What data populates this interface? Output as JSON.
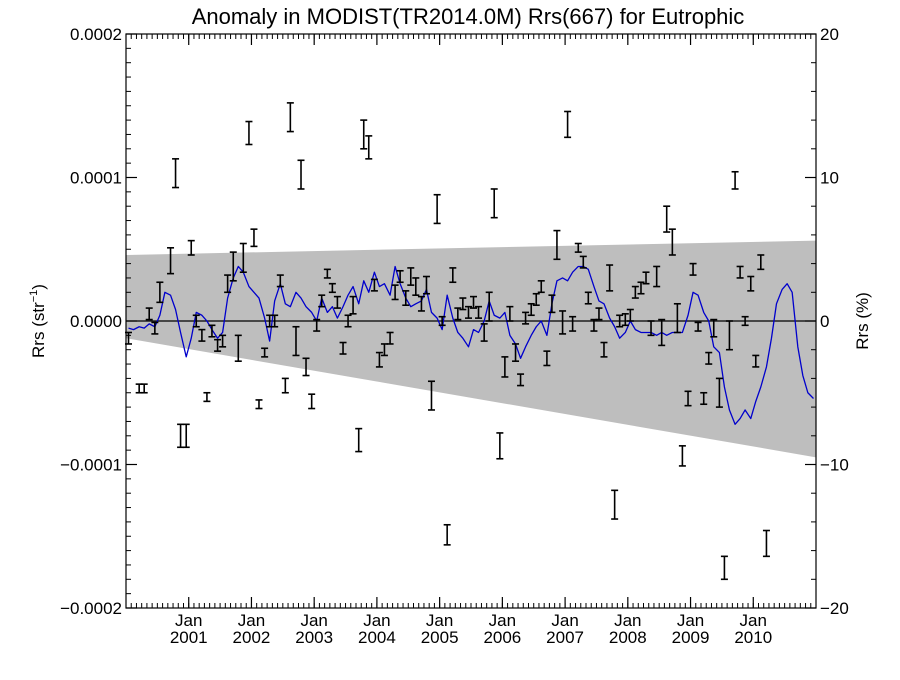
{
  "chart_data": {
    "type": "line",
    "title": "Anomaly in MODIST(TR2014.0M) Rrs(667) for Eutrophic",
    "ylabel_left_main": "Rrs (str",
    "ylabel_left_sup": "−1",
    "ylabel_left_close": ")",
    "ylabel_right": "Rrs (%)",
    "xlabel": "",
    "x_unit": "year (decimal)",
    "xlim": [
      2000.0,
      2011.0
    ],
    "ylim_left": [
      -0.0002,
      0.0002
    ],
    "ylim_right": [
      -20,
      20
    ],
    "left_ticks": [
      {
        "value": 0.0002,
        "label": "0.0002"
      },
      {
        "value": 0.0001,
        "label": "0.0001"
      },
      {
        "value": 0.0,
        "label": "0.0000"
      },
      {
        "value": -0.0001,
        "label": "−0.0001"
      },
      {
        "value": -0.0002,
        "label": "−0.0002"
      }
    ],
    "right_ticks": [
      {
        "value": 20,
        "label": "20"
      },
      {
        "value": 10,
        "label": "10"
      },
      {
        "value": 0,
        "label": "0"
      },
      {
        "value": -10,
        "label": "−10"
      },
      {
        "value": -20,
        "label": "−20"
      }
    ],
    "x_ticks": [
      {
        "value": 2001.0,
        "month": "Jan",
        "year": "2001"
      },
      {
        "value": 2002.0,
        "month": "Jan",
        "year": "2002"
      },
      {
        "value": 2003.0,
        "month": "Jan",
        "year": "2003"
      },
      {
        "value": 2004.0,
        "month": "Jan",
        "year": "2004"
      },
      {
        "value": 2005.0,
        "month": "Jan",
        "year": "2005"
      },
      {
        "value": 2006.0,
        "month": "Jan",
        "year": "2006"
      },
      {
        "value": 2007.0,
        "month": "Jan",
        "year": "2007"
      },
      {
        "value": 2008.0,
        "month": "Jan",
        "year": "2008"
      },
      {
        "value": 2009.0,
        "month": "Jan",
        "year": "2009"
      },
      {
        "value": 2010.0,
        "month": "Jan",
        "year": "2010"
      }
    ],
    "uncertainty_band": {
      "x": [
        2000.0,
        2011.0
      ],
      "upper": [
        4.6e-05,
        5.6e-05
      ],
      "lower": [
        -1.2e-05,
        -9.5e-05
      ],
      "color": "#bebebe"
    },
    "zero_line": 0.0,
    "series": [
      {
        "style": "line",
        "color": "#0000cc",
        "x": [
          2000.04,
          2000.12,
          2000.21,
          2000.29,
          2000.37,
          2000.46,
          2000.54,
          2000.62,
          2000.71,
          2000.79,
          2000.87,
          2000.96,
          2001.04,
          2001.12,
          2001.21,
          2001.29,
          2001.37,
          2001.46,
          2001.54,
          2001.62,
          2001.71,
          2001.79,
          2001.87,
          2001.96,
          2002.04,
          2002.12,
          2002.21,
          2002.29,
          2002.37,
          2002.46,
          2002.54,
          2002.62,
          2002.71,
          2002.79,
          2002.87,
          2002.96,
          2003.04,
          2003.12,
          2003.21,
          2003.29,
          2003.37,
          2003.46,
          2003.54,
          2003.62,
          2003.71,
          2003.79,
          2003.87,
          2003.96,
          2004.04,
          2004.12,
          2004.21,
          2004.29,
          2004.37,
          2004.46,
          2004.54,
          2004.62,
          2004.71,
          2004.79,
          2004.87,
          2004.96,
          2005.04,
          2005.12,
          2005.21,
          2005.29,
          2005.37,
          2005.46,
          2005.54,
          2005.62,
          2005.71,
          2005.79,
          2005.87,
          2005.96,
          2006.04,
          2006.12,
          2006.21,
          2006.29,
          2006.37,
          2006.46,
          2006.54,
          2006.62,
          2006.71,
          2006.79,
          2006.87,
          2006.96,
          2007.04,
          2007.12,
          2007.21,
          2007.29,
          2007.37,
          2007.46,
          2007.54,
          2007.62,
          2007.71,
          2007.79,
          2007.87,
          2007.96,
          2008.04,
          2008.12,
          2008.21,
          2008.29,
          2008.37,
          2008.46,
          2008.54,
          2008.62,
          2008.71,
          2008.79,
          2008.87,
          2008.96,
          2009.04,
          2009.12,
          2009.21,
          2009.29,
          2009.37,
          2009.46,
          2009.54,
          2009.62,
          2009.71,
          2009.79,
          2009.87,
          2009.96,
          2010.04,
          2010.12,
          2010.21,
          2010.29,
          2010.37,
          2010.46,
          2010.54,
          2010.62,
          2010.71,
          2010.79,
          2010.87,
          2010.96
        ],
        "y": [
          -5e-06,
          -6e-06,
          -4e-06,
          -5e-06,
          -2e-06,
          -4e-06,
          4e-06,
          2e-05,
          1.8e-05,
          8e-06,
          -8e-06,
          -2.5e-05,
          -1.2e-05,
          6e-06,
          4e-06,
          0.0,
          -6e-06,
          -1.2e-05,
          -8e-06,
          1.6e-05,
          3e-05,
          3.8e-05,
          3.4e-05,
          2.4e-05,
          2e-05,
          1.6e-05,
          2e-06,
          -1.4e-05,
          1.4e-05,
          2.6e-05,
          1.2e-05,
          1e-05,
          2e-05,
          1.6e-05,
          1e-05,
          6e-06,
          0.0,
          1.6e-05,
          6e-06,
          1e-05,
          2e-06,
          1e-05,
          1.8e-05,
          2.4e-05,
          1.2e-05,
          2.8e-05,
          2e-05,
          3.4e-05,
          2.4e-05,
          2.6e-05,
          1.8e-05,
          3.8e-05,
          2.6e-05,
          1.6e-05,
          1e-05,
          1.2e-05,
          1.4e-05,
          2.2e-05,
          6e-06,
          2e-06,
          -6e-06,
          1.8e-05,
          2e-06,
          -8e-06,
          -1.2e-05,
          -1.8e-05,
          -6e-06,
          -8e-06,
          0.0,
          1.4e-05,
          4e-06,
          2e-06,
          6e-06,
          -1e-05,
          -1.6e-05,
          -2.6e-05,
          -1.8e-05,
          -1e-05,
          -4e-06,
          0.0,
          -1e-05,
          1.2e-05,
          2.8e-05,
          3e-05,
          2.8e-05,
          3.4e-05,
          3.8e-05,
          3.8e-05,
          3.6e-05,
          2.4e-05,
          1.4e-05,
          1.2e-05,
          2e-06,
          -4e-06,
          -1.2e-05,
          -8e-06,
          0.0,
          -6e-06,
          -8e-06,
          -8e-06,
          -8e-06,
          -1e-05,
          -8e-06,
          -1e-05,
          -8e-06,
          -8e-06,
          -8e-06,
          4e-06,
          2e-05,
          1.8e-05,
          6e-06,
          0.0,
          -1.8e-05,
          -2.2e-05,
          -4.6e-05,
          -6.2e-05,
          -7.2e-05,
          -6.8e-05,
          -6.2e-05,
          -6.8e-05,
          -5.6e-05,
          -4.6e-05,
          -3.2e-05,
          -1.2e-05,
          1.2e-05,
          2.2e-05,
          2.6e-05,
          2e-05,
          -1.8e-05,
          -3.8e-05,
          -5e-05,
          -5.4e-05
        ]
      },
      {
        "style": "errorbar",
        "color": "#000000",
        "points": [
          {
            "x": 2000.04,
            "y": -1.2e-05,
            "err": 4e-06
          },
          {
            "x": 2000.21,
            "y": -4.7e-05,
            "err": 3e-06
          },
          {
            "x": 2000.29,
            "y": -4.7e-05,
            "err": 3e-06
          },
          {
            "x": 2000.37,
            "y": 5e-06,
            "err": 4e-06
          },
          {
            "x": 2000.46,
            "y": -5e-06,
            "err": 4e-06
          },
          {
            "x": 2000.54,
            "y": 2e-05,
            "err": 7e-06
          },
          {
            "x": 2000.71,
            "y": 4.2e-05,
            "err": 9e-06
          },
          {
            "x": 2000.79,
            "y": 0.000103,
            "err": 1e-05
          },
          {
            "x": 2000.87,
            "y": -8e-05,
            "err": 8e-06
          },
          {
            "x": 2000.96,
            "y": -8e-05,
            "err": 8e-06
          },
          {
            "x": 2001.04,
            "y": 5.1e-05,
            "err": 5e-06
          },
          {
            "x": 2001.12,
            "y": 0.0,
            "err": 4e-06
          },
          {
            "x": 2001.21,
            "y": -1e-05,
            "err": 4e-06
          },
          {
            "x": 2001.29,
            "y": -5.3e-05,
            "err": 3e-06
          },
          {
            "x": 2001.37,
            "y": -7e-06,
            "err": 4e-06
          },
          {
            "x": 2001.46,
            "y": -1.7e-05,
            "err": 4e-06
          },
          {
            "x": 2001.54,
            "y": -1.4e-05,
            "err": 4e-06
          },
          {
            "x": 2001.62,
            "y": 2.6e-05,
            "err": 6e-06
          },
          {
            "x": 2001.71,
            "y": 3.8e-05,
            "err": 1e-05
          },
          {
            "x": 2001.79,
            "y": -1.9e-05,
            "err": 9e-06
          },
          {
            "x": 2001.87,
            "y": 4.4e-05,
            "err": 1e-05
          },
          {
            "x": 2001.96,
            "y": 0.000131,
            "err": 8e-06
          },
          {
            "x": 2002.04,
            "y": 5.8e-05,
            "err": 6e-06
          },
          {
            "x": 2002.12,
            "y": -5.8e-05,
            "err": 3e-06
          },
          {
            "x": 2002.21,
            "y": -2.2e-05,
            "err": 3e-06
          },
          {
            "x": 2002.29,
            "y": 0.0,
            "err": 4e-06
          },
          {
            "x": 2002.37,
            "y": 0.0,
            "err": 4e-06
          },
          {
            "x": 2002.46,
            "y": 2.8e-05,
            "err": 4e-06
          },
          {
            "x": 2002.54,
            "y": -4.5e-05,
            "err": 5e-06
          },
          {
            "x": 2002.62,
            "y": 0.000142,
            "err": 1e-05
          },
          {
            "x": 2002.71,
            "y": -1.4e-05,
            "err": 1e-05
          },
          {
            "x": 2002.79,
            "y": 0.000102,
            "err": 1e-05
          },
          {
            "x": 2002.87,
            "y": -3.2e-05,
            "err": 6e-06
          },
          {
            "x": 2002.96,
            "y": -5.6e-05,
            "err": 5e-06
          },
          {
            "x": 2003.04,
            "y": -3e-06,
            "err": 4e-06
          },
          {
            "x": 2003.12,
            "y": 1.4e-05,
            "err": 4e-06
          },
          {
            "x": 2003.21,
            "y": 3.3e-05,
            "err": 3e-06
          },
          {
            "x": 2003.29,
            "y": 2.3e-05,
            "err": 3e-06
          },
          {
            "x": 2003.37,
            "y": 1.3e-05,
            "err": 4e-06
          },
          {
            "x": 2003.46,
            "y": -1.9e-05,
            "err": 4e-06
          },
          {
            "x": 2003.54,
            "y": 0.0,
            "err": 4e-06
          },
          {
            "x": 2003.62,
            "y": 1.1e-05,
            "err": 6e-06
          },
          {
            "x": 2003.71,
            "y": -8.3e-05,
            "err": 8e-06
          },
          {
            "x": 2003.79,
            "y": 0.00013,
            "err": 1e-05
          },
          {
            "x": 2003.87,
            "y": 0.000121,
            "err": 8e-06
          },
          {
            "x": 2003.96,
            "y": 2.5e-05,
            "err": 4e-06
          },
          {
            "x": 2004.04,
            "y": -2.7e-05,
            "err": 5e-06
          },
          {
            "x": 2004.12,
            "y": -2e-05,
            "err": 4e-06
          },
          {
            "x": 2004.21,
            "y": -1.2e-05,
            "err": 4e-06
          },
          {
            "x": 2004.29,
            "y": 2e-05,
            "err": 5e-06
          },
          {
            "x": 2004.37,
            "y": 3.1e-05,
            "err": 4e-06
          },
          {
            "x": 2004.46,
            "y": 1.6e-05,
            "err": 5e-06
          },
          {
            "x": 2004.54,
            "y": 3.1e-05,
            "err": 6e-06
          },
          {
            "x": 2004.62,
            "y": 2.4e-05,
            "err": 6e-06
          },
          {
            "x": 2004.71,
            "y": 1.2e-05,
            "err": 5e-06
          },
          {
            "x": 2004.79,
            "y": 2.5e-05,
            "err": 6e-06
          },
          {
            "x": 2004.87,
            "y": -5.2e-05,
            "err": 1e-05
          },
          {
            "x": 2004.96,
            "y": 7.8e-05,
            "err": 1e-05
          },
          {
            "x": 2005.04,
            "y": 0.0,
            "err": 3e-06
          },
          {
            "x": 2005.12,
            "y": -0.000149,
            "err": 7e-06
          },
          {
            "x": 2005.21,
            "y": 3.2e-05,
            "err": 5e-06
          },
          {
            "x": 2005.29,
            "y": 5e-06,
            "err": 4e-06
          },
          {
            "x": 2005.37,
            "y": 1.2e-05,
            "err": 4e-06
          },
          {
            "x": 2005.46,
            "y": 6e-06,
            "err": 4e-06
          },
          {
            "x": 2005.54,
            "y": 1.3e-05,
            "err": 4e-06
          },
          {
            "x": 2005.62,
            "y": 6e-06,
            "err": 4e-06
          },
          {
            "x": 2005.71,
            "y": -8e-06,
            "err": 6e-06
          },
          {
            "x": 2005.79,
            "y": 1e-05,
            "err": 1e-05
          },
          {
            "x": 2005.87,
            "y": 8.2e-05,
            "err": 1e-05
          },
          {
            "x": 2005.96,
            "y": -8.7e-05,
            "err": 9e-06
          },
          {
            "x": 2006.04,
            "y": -3.2e-05,
            "err": 7e-06
          },
          {
            "x": 2006.12,
            "y": 5e-06,
            "err": 5e-06
          },
          {
            "x": 2006.21,
            "y": -2.2e-05,
            "err": 6e-06
          },
          {
            "x": 2006.29,
            "y": -4.1e-05,
            "err": 4e-06
          },
          {
            "x": 2006.37,
            "y": 2e-06,
            "err": 4e-06
          },
          {
            "x": 2006.46,
            "y": 8e-06,
            "err": 4e-06
          },
          {
            "x": 2006.54,
            "y": 1.5e-05,
            "err": 4e-06
          },
          {
            "x": 2006.62,
            "y": 2.4e-05,
            "err": 4e-06
          },
          {
            "x": 2006.71,
            "y": -2.6e-05,
            "err": 5e-06
          },
          {
            "x": 2006.79,
            "y": 1.2e-05,
            "err": 6e-06
          },
          {
            "x": 2006.87,
            "y": 5.3e-05,
            "err": 1e-05
          },
          {
            "x": 2006.96,
            "y": -1e-06,
            "err": 8e-06
          },
          {
            "x": 2007.04,
            "y": 0.000137,
            "err": 9e-06
          },
          {
            "x": 2007.12,
            "y": -2e-06,
            "err": 5e-06
          },
          {
            "x": 2007.21,
            "y": 5.1e-05,
            "err": 3e-06
          },
          {
            "x": 2007.29,
            "y": 4.1e-05,
            "err": 4e-06
          },
          {
            "x": 2007.37,
            "y": 1.6e-05,
            "err": 4e-06
          },
          {
            "x": 2007.46,
            "y": -3e-06,
            "err": 4e-06
          },
          {
            "x": 2007.54,
            "y": 5e-06,
            "err": 4e-06
          },
          {
            "x": 2007.62,
            "y": -2e-05,
            "err": 5e-06
          },
          {
            "x": 2007.71,
            "y": 3e-05,
            "err": 9e-06
          },
          {
            "x": 2007.79,
            "y": -0.000128,
            "err": 1e-05
          },
          {
            "x": 2007.87,
            "y": 0.0,
            "err": 4e-06
          },
          {
            "x": 2007.96,
            "y": 1e-06,
            "err": 4e-06
          },
          {
            "x": 2008.04,
            "y": 4e-06,
            "err": 4e-06
          },
          {
            "x": 2008.12,
            "y": 2e-05,
            "err": 4e-06
          },
          {
            "x": 2008.21,
            "y": 2.3e-05,
            "err": 4e-06
          },
          {
            "x": 2008.29,
            "y": 3e-05,
            "err": 4e-06
          },
          {
            "x": 2008.37,
            "y": -5e-06,
            "err": 5e-06
          },
          {
            "x": 2008.46,
            "y": 3.1e-05,
            "err": 7e-06
          },
          {
            "x": 2008.54,
            "y": -8e-06,
            "err": 9e-06
          },
          {
            "x": 2008.62,
            "y": 7.1e-05,
            "err": 9e-06
          },
          {
            "x": 2008.71,
            "y": 5.5e-05,
            "err": 9e-06
          },
          {
            "x": 2008.79,
            "y": 2e-06,
            "err": 1e-05
          },
          {
            "x": 2008.87,
            "y": -9.4e-05,
            "err": 7e-06
          },
          {
            "x": 2008.96,
            "y": -5.4e-05,
            "err": 5e-06
          },
          {
            "x": 2009.04,
            "y": 3.6e-05,
            "err": 4e-06
          },
          {
            "x": 2009.12,
            "y": -4e-06,
            "err": 3e-06
          },
          {
            "x": 2009.21,
            "y": -5.4e-05,
            "err": 4e-06
          },
          {
            "x": 2009.29,
            "y": -2.6e-05,
            "err": 4e-06
          },
          {
            "x": 2009.37,
            "y": -5e-06,
            "err": 6e-06
          },
          {
            "x": 2009.46,
            "y": -5e-05,
            "err": 1e-05
          },
          {
            "x": 2009.54,
            "y": -0.000172,
            "err": 8e-06
          },
          {
            "x": 2009.62,
            "y": -1e-05,
            "err": 1e-05
          },
          {
            "x": 2009.71,
            "y": 9.8e-05,
            "err": 6e-06
          },
          {
            "x": 2009.79,
            "y": 3.4e-05,
            "err": 4e-06
          },
          {
            "x": 2009.87,
            "y": 0.0,
            "err": 3e-06
          },
          {
            "x": 2009.96,
            "y": 2.6e-05,
            "err": 5e-06
          },
          {
            "x": 2010.04,
            "y": -2.8e-05,
            "err": 4e-06
          },
          {
            "x": 2010.12,
            "y": 4.1e-05,
            "err": 5e-06
          },
          {
            "x": 2010.21,
            "y": -0.000155,
            "err": 9e-06
          }
        ]
      }
    ],
    "grid": false,
    "legend": "none"
  }
}
